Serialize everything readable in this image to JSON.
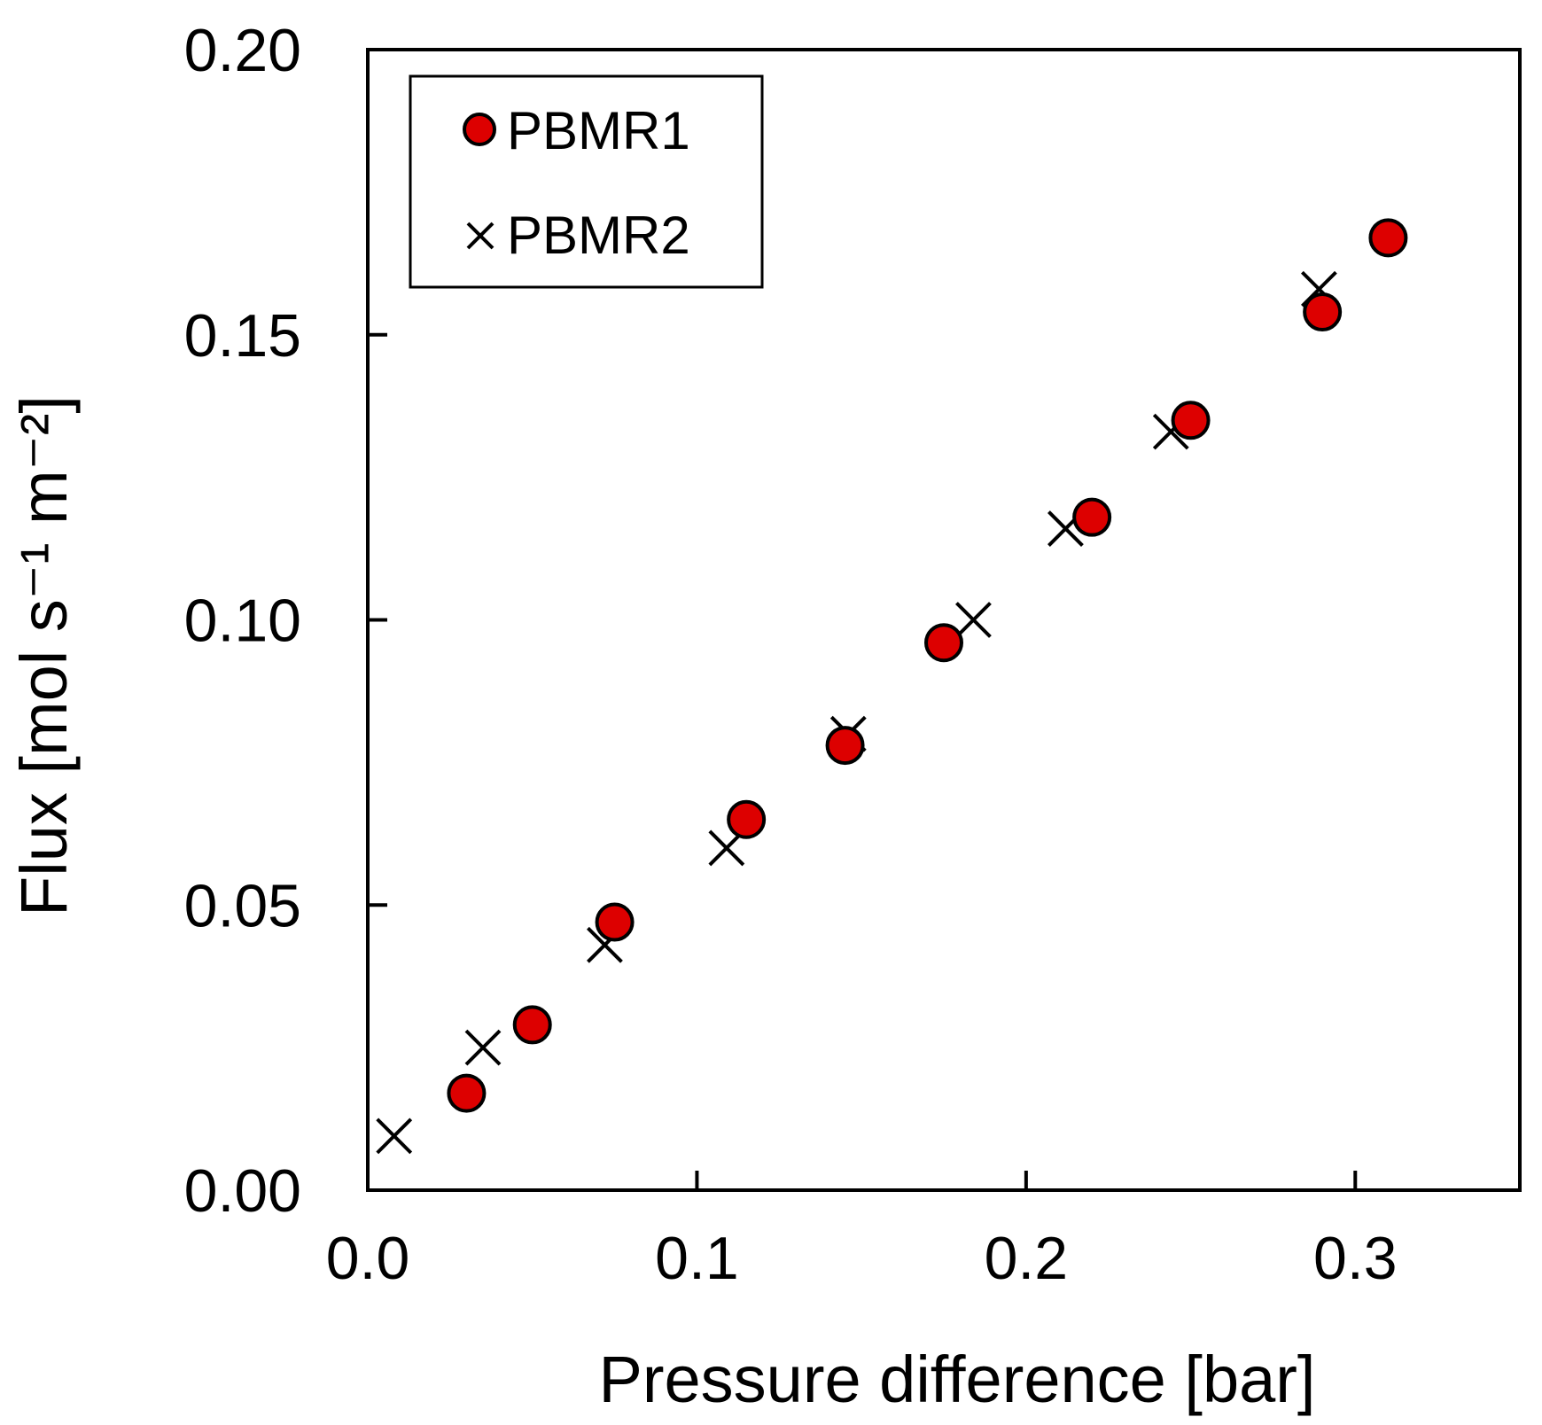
{
  "chart_data": {
    "type": "scatter",
    "xlabel": "Pressure difference [bar]",
    "ylabel": "Flux [mol s⁻¹ m⁻²]",
    "xlim": [
      0.0,
      0.35
    ],
    "ylim": [
      0.0,
      0.2
    ],
    "xticks": [
      0.0,
      0.1,
      0.2,
      0.3
    ],
    "xtick_labels": [
      "0.0",
      "0.1",
      "0.2",
      "0.3"
    ],
    "yticks": [
      0.0,
      0.05,
      0.1,
      0.15,
      0.2
    ],
    "ytick_labels": [
      "0.00",
      "0.05",
      "0.10",
      "0.15",
      "0.20"
    ],
    "grid": false,
    "legend_position": "top-left",
    "series": [
      {
        "name": "PBMR1",
        "marker": "circle",
        "color": "#dd0000",
        "edge_color": "#000000",
        "x": [
          0.03,
          0.05,
          0.075,
          0.115,
          0.145,
          0.175,
          0.22,
          0.25,
          0.29,
          0.31
        ],
        "y": [
          0.017,
          0.029,
          0.047,
          0.065,
          0.078,
          0.096,
          0.118,
          0.135,
          0.154,
          0.167
        ]
      },
      {
        "name": "PBMR2",
        "marker": "x",
        "color": "#000000",
        "x": [
          0.008,
          0.035,
          0.072,
          0.109,
          0.146,
          0.184,
          0.212,
          0.244,
          0.289
        ],
        "y": [
          0.0095,
          0.025,
          0.043,
          0.06,
          0.08,
          0.1,
          0.116,
          0.133,
          0.158
        ]
      }
    ]
  }
}
